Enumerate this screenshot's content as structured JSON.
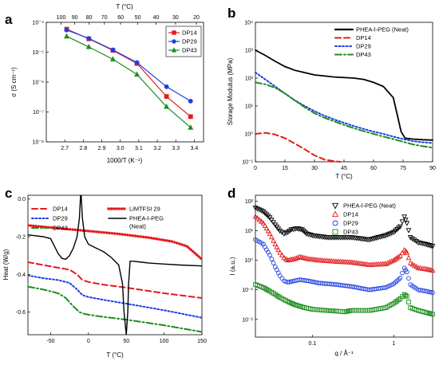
{
  "chart_data": [
    {
      "panel": "a",
      "type": "line",
      "xlabel": "1000/T (K⁻¹)",
      "ylabel": "σ (S cm⁻¹)",
      "top_xlabel": "T (°C)",
      "xlim": [
        2.6,
        3.45
      ],
      "ylim_log10": [
        -8,
        -4
      ],
      "yscale": "log",
      "x_ticks": [
        "2.7",
        "2.8",
        "2.9",
        "3.0",
        "3.1",
        "3.2",
        "3.3",
        "3.4"
      ],
      "y_ticks": [
        "10⁻⁸",
        "10⁻⁷",
        "10⁻⁶",
        "10⁻⁵",
        "10⁻⁴"
      ],
      "top_ticks": [
        "100",
        "90",
        "80",
        "70",
        "60",
        "50",
        "40",
        "30",
        "20"
      ],
      "legend_position": "top-right",
      "series": [
        {
          "name": "DP14",
          "color": "#e41a1c",
          "marker": "square",
          "x": [
            2.71,
            2.83,
            2.96,
            3.09,
            3.25,
            3.38
          ],
          "y": [
            5.9e-05,
            2.8e-05,
            1.15e-05,
            4.2e-06,
            3.3e-07,
            7e-08
          ]
        },
        {
          "name": "DP29",
          "color": "#1f3fe0",
          "marker": "circle",
          "x": [
            2.71,
            2.83,
            2.96,
            3.09,
            3.25,
            3.38
          ],
          "y": [
            5.5e-05,
            2.9e-05,
            1.2e-05,
            4.5e-06,
            7e-07,
            2.3e-07
          ]
        },
        {
          "name": "DP43",
          "color": "#1e8c1e",
          "marker": "triangle",
          "x": [
            2.71,
            2.83,
            2.96,
            3.09,
            3.25,
            3.38
          ],
          "y": [
            3.4e-05,
            1.5e-05,
            5.8e-06,
            1.8e-06,
            1.5e-07,
            3e-08
          ]
        }
      ]
    },
    {
      "panel": "b",
      "type": "line",
      "xlabel": "T (°C)",
      "ylabel": "Storage Modulus (MPa)",
      "xlim": [
        0,
        90
      ],
      "ylim_log10": [
        -1,
        4
      ],
      "yscale": "log",
      "x_ticks": [
        "0",
        "15",
        "30",
        "45",
        "60",
        "75",
        "90"
      ],
      "y_ticks": [
        "10⁻¹",
        "10⁰",
        "10¹",
        "10²",
        "10³",
        "10⁴"
      ],
      "legend_position": "top-right",
      "series": [
        {
          "name": "PHEA-l-PEG (Neat)",
          "color": "#000000",
          "dash": "solid",
          "x": [
            0,
            5,
            10,
            15,
            20,
            30,
            40,
            50,
            55,
            60,
            65,
            70,
            72,
            74,
            76,
            80,
            85,
            90
          ],
          "y": [
            1000,
            650,
            400,
            260,
            190,
            130,
            110,
            100,
            90,
            70,
            50,
            20,
            5,
            1.2,
            0.7,
            0.65,
            0.62,
            0.6
          ]
        },
        {
          "name": "DP14",
          "color": "#e41a1c",
          "dash": "dashed",
          "x": [
            0,
            5,
            10,
            15,
            20,
            25,
            30,
            35,
            40,
            43
          ],
          "y": [
            1.0,
            1.1,
            0.95,
            0.7,
            0.45,
            0.28,
            0.17,
            0.12,
            0.105,
            0.1
          ]
        },
        {
          "name": "DP29",
          "color": "#1f3fe0",
          "dash": "dotted",
          "x": [
            0,
            5,
            10,
            15,
            20,
            25,
            30,
            35,
            40,
            45,
            50,
            55,
            60,
            65,
            70,
            75,
            80,
            85,
            90
          ],
          "y": [
            160,
            90,
            50,
            28,
            16,
            10,
            6.5,
            4.5,
            3.3,
            2.5,
            1.9,
            1.5,
            1.2,
            1.0,
            0.8,
            0.65,
            0.55,
            0.5,
            0.47
          ]
        },
        {
          "name": "DP43",
          "color": "#1e8c1e",
          "dash": "dashdot",
          "x": [
            0,
            5,
            10,
            15,
            20,
            25,
            30,
            35,
            40,
            45,
            50,
            55,
            60,
            65,
            70,
            75,
            80,
            85,
            90
          ],
          "y": [
            70,
            60,
            45,
            28,
            16,
            9,
            5.5,
            3.8,
            2.8,
            2.1,
            1.6,
            1.25,
            1.0,
            0.8,
            0.65,
            0.52,
            0.42,
            0.36,
            0.32
          ]
        }
      ]
    },
    {
      "panel": "c",
      "type": "line",
      "xlabel": "T (°C)",
      "ylabel": "Heat (W/g)",
      "xlim": [
        -80,
        150
      ],
      "ylim": [
        -0.72,
        0.02
      ],
      "x_ticks": [
        "-50",
        "0",
        "50",
        "100",
        "150"
      ],
      "y_ticks": [
        "-0.6",
        "-0.4",
        "-0.2",
        "0.0"
      ],
      "series": [
        {
          "name": "DP14",
          "color": "#e41a1c",
          "dash": "dashed",
          "x": [
            -80,
            -60,
            -40,
            -25,
            -15,
            -8,
            0,
            20,
            50,
            100,
            150
          ],
          "y": [
            -0.335,
            -0.35,
            -0.365,
            -0.375,
            -0.4,
            -0.43,
            -0.44,
            -0.455,
            -0.47,
            -0.5,
            -0.525
          ]
        },
        {
          "name": "DP29",
          "color": "#1f3fe0",
          "dash": "dotted",
          "x": [
            -80,
            -60,
            -40,
            -25,
            -15,
            -8,
            0,
            20,
            50,
            100,
            150
          ],
          "y": [
            -0.405,
            -0.42,
            -0.43,
            -0.445,
            -0.48,
            -0.51,
            -0.52,
            -0.535,
            -0.555,
            -0.59,
            -0.63
          ]
        },
        {
          "name": "DP43",
          "color": "#1e8c1e",
          "dash": "dashdot",
          "x": [
            -80,
            -60,
            -40,
            -30,
            -20,
            -12,
            -5,
            10,
            50,
            100,
            150
          ],
          "y": [
            -0.465,
            -0.48,
            -0.5,
            -0.525,
            -0.57,
            -0.6,
            -0.61,
            -0.62,
            -0.64,
            -0.67,
            -0.705
          ]
        },
        {
          "name": "LiMTFSI 29",
          "color": "#e41a1c",
          "dash": "beaded",
          "x": [
            -80,
            -40,
            0,
            40,
            80,
            110,
            130,
            140,
            150
          ],
          "y": [
            -0.14,
            -0.155,
            -0.17,
            -0.185,
            -0.205,
            -0.225,
            -0.25,
            -0.285,
            -0.32
          ]
        },
        {
          "name": "PHEA-l-PEG\n(Neat)",
          "color": "#000000",
          "dash": "solid",
          "x": [
            -80,
            -60,
            -50,
            -45,
            -40,
            -35,
            -30,
            -25,
            -20,
            -15,
            -12,
            -10,
            -8,
            -5,
            0,
            10,
            20,
            30,
            40,
            45,
            47,
            50,
            52,
            53,
            55,
            60,
            70,
            80,
            100,
            120,
            150
          ],
          "y": [
            -0.19,
            -0.2,
            -0.21,
            -0.25,
            -0.29,
            -0.315,
            -0.32,
            -0.3,
            -0.26,
            -0.2,
            -0.1,
            0.05,
            -0.1,
            -0.2,
            -0.24,
            -0.26,
            -0.28,
            -0.31,
            -0.35,
            -0.45,
            -0.6,
            -0.72,
            -0.6,
            -0.45,
            -0.33,
            -0.33,
            -0.335,
            -0.34,
            -0.345,
            -0.35,
            -0.355
          ]
        }
      ]
    },
    {
      "panel": "d",
      "type": "scatter",
      "xlabel": "q / Å⁻¹",
      "ylabel": "I (a.u.)",
      "xscale": "log",
      "yscale": "log",
      "xlim": [
        0.02,
        3.0
      ],
      "ylim_log10": [
        -2.6,
        2.2
      ],
      "x_ticks": [
        "0.1",
        "1"
      ],
      "y_ticks": [
        "10⁻²",
        "10⁻¹",
        "10⁰",
        "10¹",
        "10²"
      ],
      "legend_position": "top-right",
      "series": [
        {
          "name": "PHEA-l-PEG (Neat)",
          "color": "#000000",
          "marker": "triangle-down",
          "x": [
            0.02,
            0.025,
            0.03,
            0.035,
            0.04,
            0.045,
            0.05,
            0.055,
            0.065,
            0.075,
            0.085,
            0.1,
            0.15,
            0.2,
            0.3,
            0.5,
            0.8,
            1.0,
            1.2,
            1.35,
            1.45,
            1.6,
            2.0,
            2.5,
            3.0
          ],
          "y": [
            60,
            45,
            28,
            16,
            10,
            8,
            9,
            11,
            12,
            11,
            8,
            7,
            6,
            6,
            6,
            5,
            7,
            9,
            14,
            30,
            18,
            6,
            4,
            3.5,
            3
          ]
        },
        {
          "name": "DP14",
          "color": "#e41a1c",
          "marker": "triangle",
          "x": [
            0.02,
            0.025,
            0.03,
            0.035,
            0.04,
            0.045,
            0.05,
            0.06,
            0.07,
            0.09,
            0.12,
            0.2,
            0.3,
            0.5,
            0.8,
            1.0,
            1.2,
            1.35,
            1.45,
            1.6,
            2.0,
            2.5,
            3.0
          ],
          "y": [
            30,
            18,
            8,
            3.5,
            1.8,
            1.2,
            1.0,
            1.1,
            1.3,
            1.1,
            1.0,
            0.9,
            0.85,
            0.7,
            0.75,
            1.0,
            1.4,
            2.2,
            1.8,
            0.8,
            0.55,
            0.5,
            0.45
          ]
        },
        {
          "name": "DP29",
          "color": "#1f3fe0",
          "marker": "circle",
          "x": [
            0.02,
            0.025,
            0.03,
            0.035,
            0.04,
            0.045,
            0.05,
            0.06,
            0.07,
            0.09,
            0.12,
            0.2,
            0.3,
            0.5,
            0.8,
            1.0,
            1.2,
            1.35,
            1.45,
            1.6,
            2.0,
            2.5,
            3.0
          ],
          "y": [
            5,
            3.5,
            1.5,
            0.6,
            0.3,
            0.2,
            0.18,
            0.2,
            0.22,
            0.2,
            0.17,
            0.15,
            0.13,
            0.1,
            0.12,
            0.16,
            0.25,
            0.55,
            0.4,
            0.15,
            0.1,
            0.09,
            0.08
          ]
        },
        {
          "name": "DP43",
          "color": "#1e8c1e",
          "marker": "square",
          "x": [
            0.02,
            0.025,
            0.03,
            0.035,
            0.04,
            0.05,
            0.06,
            0.08,
            0.1,
            0.15,
            0.2,
            0.25,
            0.3,
            0.5,
            0.8,
            1.0,
            1.2,
            1.35,
            1.45,
            1.6,
            2.0,
            2.5,
            3.0
          ],
          "y": [
            0.15,
            0.12,
            0.09,
            0.07,
            0.055,
            0.04,
            0.032,
            0.025,
            0.022,
            0.02,
            0.019,
            0.018,
            0.02,
            0.02,
            0.025,
            0.035,
            0.05,
            0.07,
            0.06,
            0.025,
            0.02,
            0.017,
            0.015
          ]
        }
      ]
    }
  ]
}
